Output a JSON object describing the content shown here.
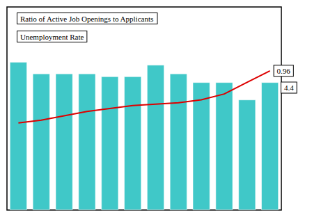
{
  "chart_data": {
    "type": "bar",
    "categories": [
      null,
      null,
      null,
      null,
      null,
      null,
      null,
      null,
      null,
      null,
      null,
      null
    ],
    "series": [
      {
        "type": "bar",
        "color": "#40C8C8",
        "values": [
          5.1,
          4.7,
          4.7,
          4.7,
          4.6,
          4.6,
          5.0,
          4.7,
          4.4,
          4.4,
          3.8,
          4.4
        ]
      },
      {
        "type": "line",
        "color": "#DD0000",
        "axis": "y2",
        "values": [
          0.6,
          0.62,
          0.65,
          0.68,
          0.7,
          0.72,
          0.73,
          0.74,
          0.76,
          0.8,
          0.88,
          0.96
        ]
      }
    ],
    "ylim": [
      0,
      7
    ],
    "y2lim": [
      0,
      1.4
    ],
    "annotations": [
      "Ratio of Active Job Openings to Applicants",
      "Unemployment Rate",
      "0.96",
      "4.4"
    ],
    "grid": false,
    "tick_labels": false
  }
}
